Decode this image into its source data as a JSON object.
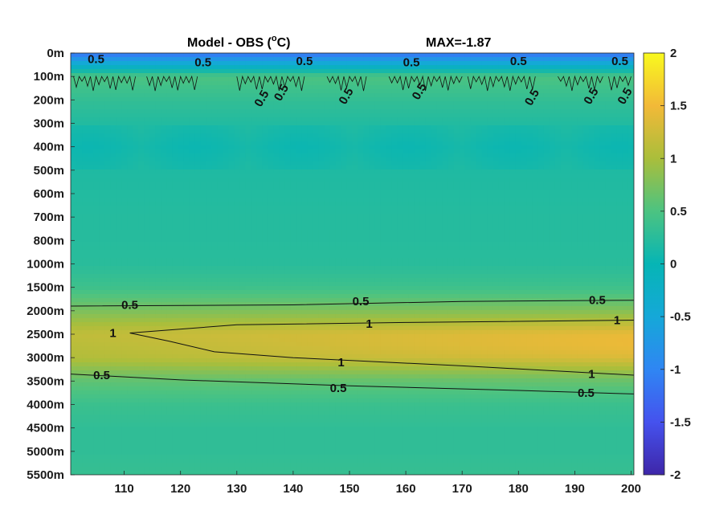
{
  "chart_data": {
    "type": "heatmap",
    "title": "Model - OBS (",
    "title_sup": "o",
    "title_tail": "C)",
    "max_label": "MAX=-1.87",
    "y_ticks": [
      "0m",
      "100m",
      "200m",
      "300m",
      "400m",
      "500m",
      "600m",
      "700m",
      "800m",
      "1000m",
      "1500m",
      "2000m",
      "2500m",
      "3000m",
      "3500m",
      "4000m",
      "4500m",
      "5000m",
      "5500m"
    ],
    "x_ticks": [
      110,
      120,
      130,
      140,
      150,
      160,
      170,
      180,
      190,
      200
    ],
    "xlim": [
      100.5,
      200.5
    ],
    "colorbar": {
      "ticks": [
        "2",
        "1.5",
        "1",
        "0.5",
        "0",
        "-0.5",
        "-1",
        "-1.5",
        "-2"
      ],
      "range": [
        -2,
        2
      ],
      "colormap": "parula"
    },
    "depth_profile": [
      {
        "level": 0,
        "value": -1.2
      },
      {
        "level": 1,
        "value": 0.5
      },
      {
        "level": 2,
        "value": 0.32
      },
      {
        "level": 3,
        "value": 0.2
      },
      {
        "level": 4,
        "value": 0.12
      },
      {
        "level": 5,
        "value": 0.18
      },
      {
        "level": 6,
        "value": 0.2
      },
      {
        "level": 7,
        "value": 0.22
      },
      {
        "level": 8,
        "value": 0.23
      },
      {
        "level": 9,
        "value": 0.25
      },
      {
        "level": 10,
        "value": 0.4
      },
      {
        "level": 11,
        "value": 0.75
      },
      {
        "level": 12,
        "value": 1.15
      },
      {
        "level": 13,
        "value": 1.05
      },
      {
        "level": 14,
        "value": 0.6
      },
      {
        "level": 15,
        "value": 0.38
      },
      {
        "level": 16,
        "value": 0.3
      },
      {
        "level": 17,
        "value": 0.3
      },
      {
        "level": 18,
        "value": 0.35
      }
    ],
    "contour_labels": [
      {
        "text": "0.5",
        "x": 111,
        "level": 10.75
      },
      {
        "text": "0.5",
        "x": 152,
        "level": 10.6
      },
      {
        "text": "0.5",
        "x": 194,
        "level": 10.55
      },
      {
        "text": "1",
        "x": 108,
        "level": 11.95
      },
      {
        "text": "1",
        "x": 153.5,
        "level": 11.55
      },
      {
        "text": "1",
        "x": 197.5,
        "level": 11.4
      },
      {
        "text": "1",
        "x": 148.5,
        "level": 13.2
      },
      {
        "text": "1",
        "x": 193,
        "level": 13.7
      },
      {
        "text": "0.5",
        "x": 106,
        "level": 13.75
      },
      {
        "text": "0.5",
        "x": 148,
        "level": 14.3
      },
      {
        "text": "0.5",
        "x": 192,
        "level": 14.5
      },
      {
        "text": "0.5",
        "x": 135,
        "level": 1.85
      },
      {
        "text": "0.5",
        "x": 138.5,
        "level": 1.6
      },
      {
        "text": "0.5",
        "x": 150,
        "level": 1.75
      },
      {
        "text": "0.5",
        "x": 163,
        "level": 1.55
      },
      {
        "text": "0.5",
        "x": 183,
        "level": 1.8
      },
      {
        "text": "0.5",
        "x": 193.5,
        "level": 1.75
      },
      {
        "text": "0.5",
        "x": 199.5,
        "level": 1.75
      },
      {
        "text": "0.5",
        "x": 105,
        "level": 0.25
      },
      {
        "text": "0.5",
        "x": 124,
        "level": 0.4
      },
      {
        "text": "0.5",
        "x": 142,
        "level": 0.35
      },
      {
        "text": "0.5",
        "x": 161,
        "level": 0.4
      },
      {
        "text": "0.5",
        "x": 180,
        "level": 0.35
      },
      {
        "text": "0.5",
        "x": 198,
        "level": 0.35
      }
    ]
  }
}
